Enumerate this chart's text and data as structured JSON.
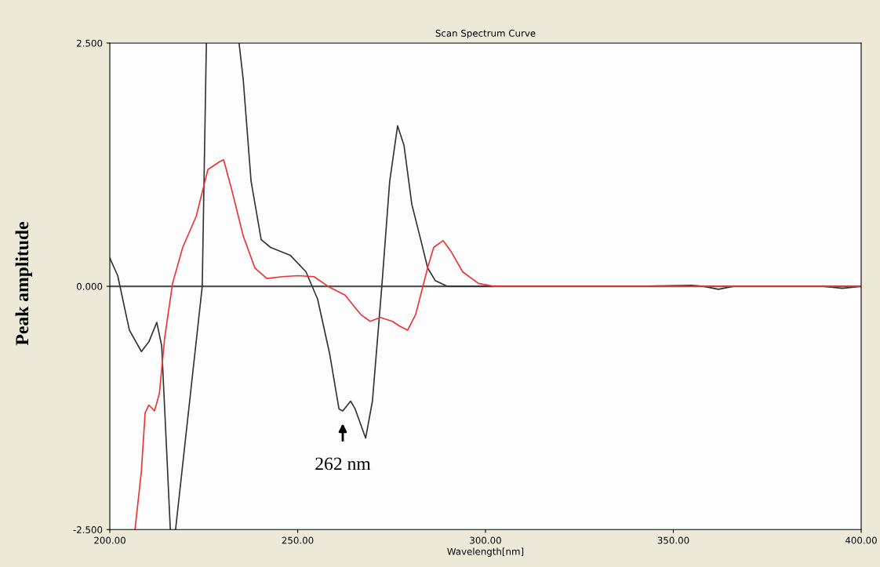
{
  "chart_data": {
    "type": "line",
    "title": "Scan Spectrum Curve",
    "xlabel": "Wavelength[nm]",
    "ylabel": "Peak amplitude",
    "xlim": [
      200,
      400
    ],
    "xticks": [
      {
        "value": 200,
        "label": "200.00"
      },
      {
        "value": 250,
        "label": "250.00"
      },
      {
        "value": 300,
        "label": "300.00"
      },
      {
        "value": 350,
        "label": "350.00"
      },
      {
        "value": 400,
        "label": "400.00"
      }
    ],
    "ylim": [
      -2.5,
      2.5
    ],
    "yticks": [
      {
        "value": -2.5,
        "label": "-2.500"
      },
      {
        "value": 0,
        "label": "0.000"
      },
      {
        "value": 2.5,
        "label": "2.500"
      }
    ],
    "grid": false,
    "legend": false,
    "marker": "none",
    "line_style": "solid",
    "ref_lines": [
      {
        "axis": "y",
        "value": 0,
        "color": "#555555",
        "line_style": "solid"
      }
    ],
    "annotations": [
      "262 nm"
    ],
    "series": [
      {
        "color": "#333333",
        "x": [
          200,
          202.1,
          205.2,
          208.4,
          210.4,
          212.5,
          213.8,
          215.2,
          216.1,
          216.8,
          217.5,
          224.6,
          225.7,
          230,
          234.4,
          235.5,
          237.6,
          240.3,
          242.8,
          248.0,
          252.2,
          255.3,
          258.5,
          261,
          262,
          264.1,
          265.3,
          268.1,
          269.9,
          272.4,
          274.5,
          276.6,
          278.3,
          280.4,
          282.5,
          284.6,
          286.6,
          289.8,
          300,
          340,
          355,
          358,
          362,
          366,
          370,
          390,
          395,
          400
        ],
        "values": [
          0.29,
          0.11,
          -0.45,
          -0.67,
          -0.57,
          -0.37,
          -0.61,
          -1.75,
          -2.5,
          null,
          -2.5,
          0,
          2.5,
          null,
          2.5,
          2.13,
          1.08,
          0.48,
          0.4,
          0.32,
          0.15,
          -0.13,
          -0.69,
          -1.26,
          -1.28,
          -1.18,
          -1.26,
          -1.56,
          -1.18,
          0,
          1.08,
          1.65,
          1.45,
          0.84,
          0.52,
          0.19,
          0.06,
          0,
          0,
          0,
          0.01,
          0,
          -0.03,
          0,
          0,
          0,
          -0.02,
          0
        ]
      },
      {
        "color": "#ee3333",
        "x": [
          206.7,
          208.4,
          209.4,
          210.4,
          211.9,
          213.2,
          214.6,
          216.7,
          219.4,
          223,
          226.1,
          229.2,
          230.3,
          232.4,
          235.5,
          238.6,
          241.8,
          246,
          250.1,
          254.3,
          258.5,
          262.6,
          266.8,
          269.3,
          272,
          275.2,
          277.2,
          279.3,
          281.4,
          284.6,
          286.2,
          288.7,
          290.8,
          293.9,
          298.1,
          302.3,
          400
        ],
        "values": [
          -2.5,
          -1.9,
          -1.3,
          -1.22,
          -1.28,
          -1.1,
          -0.53,
          0.03,
          0.4,
          0.72,
          1.2,
          1.28,
          1.3,
          1.0,
          0.52,
          0.19,
          0.08,
          0.1,
          0.11,
          0.1,
          -0.01,
          -0.09,
          -0.29,
          -0.36,
          -0.32,
          -0.36,
          -0.41,
          -0.45,
          -0.29,
          0.19,
          0.4,
          0.47,
          0.36,
          0.15,
          0.03,
          0,
          0
        ]
      }
    ]
  }
}
